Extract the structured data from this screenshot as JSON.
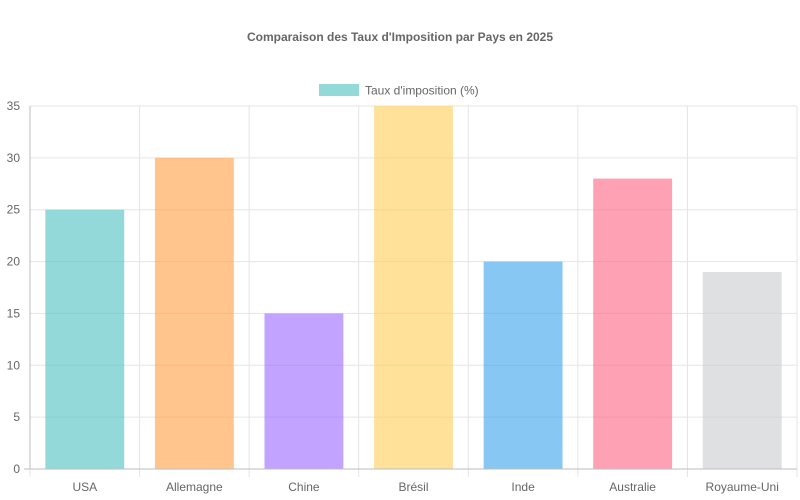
{
  "chart_data": {
    "type": "bar",
    "title": "Comparaison des Taux d'Imposition par Pays en 2025",
    "categories": [
      "USA",
      "Allemagne",
      "Chine",
      "Brésil",
      "Inde",
      "Australie",
      "Royaume-Uni"
    ],
    "series": [
      {
        "name": "Taux d'imposition (%)",
        "values": [
          25,
          30,
          15,
          35,
          20,
          28,
          19
        ],
        "colors": [
          "#4bc0c0",
          "#ff9f40",
          "#9966ff",
          "#ffcd56",
          "#36a2eb",
          "#ff6384",
          "#c9cbcf"
        ]
      }
    ],
    "ylim": [
      0,
      35
    ],
    "yticks": [
      0,
      5,
      10,
      15,
      20,
      25,
      30,
      35
    ],
    "grid": true,
    "legend_position": "top",
    "legend_swatch_color": "#4bc0c0"
  }
}
